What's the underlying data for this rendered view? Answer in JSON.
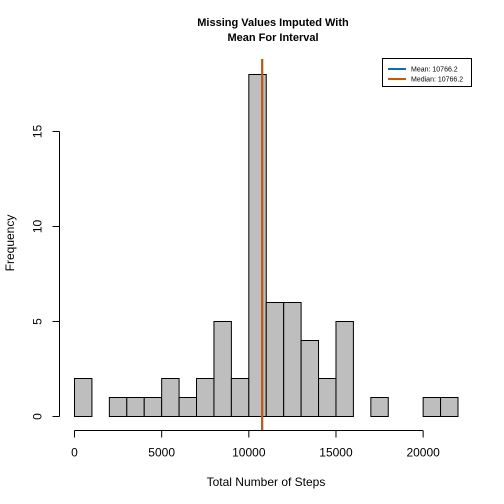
{
  "chart_data": {
    "type": "bar",
    "title_line1": "Missing Values Imputed With",
    "title_line2": "Mean For Interval",
    "xlabel": "Total Number of Steps",
    "ylabel": "Frequency",
    "bin_width": 1000,
    "bins_start": [
      0,
      1000,
      2000,
      3000,
      4000,
      5000,
      6000,
      7000,
      8000,
      9000,
      10000,
      11000,
      12000,
      13000,
      14000,
      15000,
      16000,
      17000,
      18000,
      19000,
      20000,
      21000
    ],
    "values": [
      2,
      0,
      1,
      1,
      1,
      2,
      1,
      2,
      5,
      2,
      18,
      6,
      6,
      4,
      2,
      5,
      0,
      1,
      0,
      0,
      1,
      1
    ],
    "xlim": [
      0,
      22000
    ],
    "ylim": [
      0,
      17
    ],
    "x_ticks": [
      0,
      5000,
      10000,
      15000,
      20000
    ],
    "x_tick_labels": [
      "0",
      "5000",
      "10000",
      "15000",
      "20000"
    ],
    "y_ticks": [
      0,
      5,
      10,
      15
    ],
    "y_tick_labels": [
      "0",
      "5",
      "10",
      "15"
    ],
    "bar_color": "#bebebe",
    "mean_value": 10766.2,
    "median_value": 10766.2,
    "mean_color": "#0b6cb7",
    "median_color": "#cc5500",
    "legend": [
      {
        "label": "Mean:  10766.2",
        "color": "#0b6cb7"
      },
      {
        "label": "Median:  10766.2",
        "color": "#cc5500"
      }
    ],
    "legend_position": "top-right",
    "grid": false
  }
}
